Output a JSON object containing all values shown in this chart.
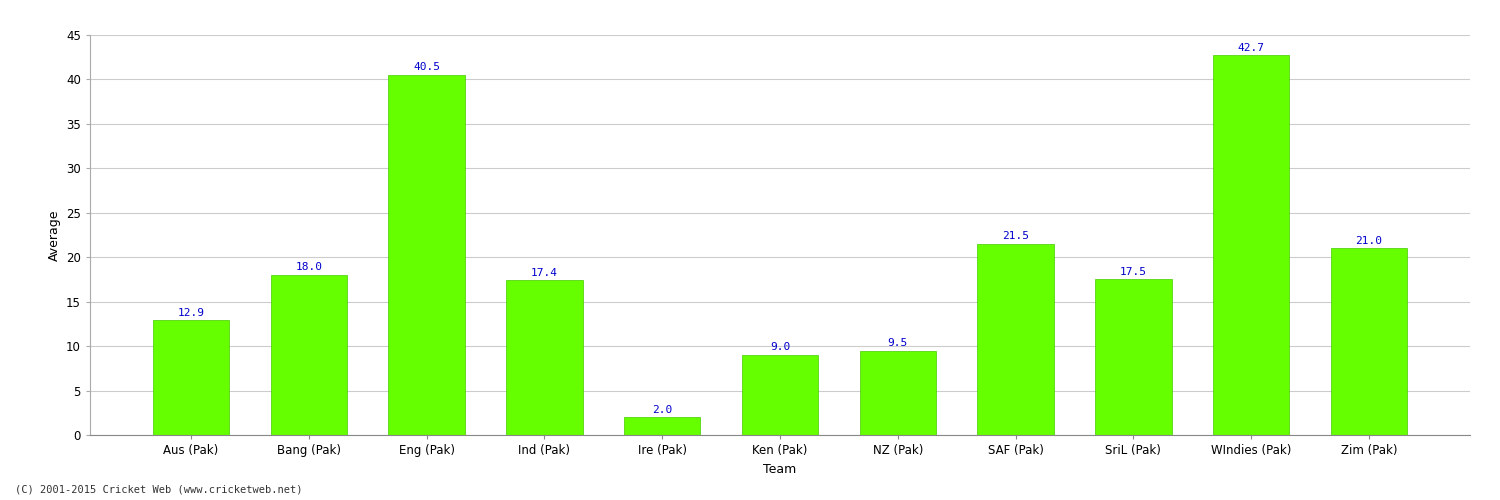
{
  "categories": [
    "Aus (Pak)",
    "Bang (Pak)",
    "Eng (Pak)",
    "Ind (Pak)",
    "Ire (Pak)",
    "Ken (Pak)",
    "NZ (Pak)",
    "SAF (Pak)",
    "SriL (Pak)",
    "WIndies (Pak)",
    "Zim (Pak)"
  ],
  "values": [
    12.9,
    18.0,
    40.5,
    17.4,
    2.0,
    9.0,
    9.5,
    21.5,
    17.5,
    42.7,
    21.0
  ],
  "bar_color": "#66ff00",
  "bar_edge_color": "#44cc00",
  "xlabel": "Team",
  "ylabel": "Average",
  "ylim": [
    0,
    45
  ],
  "yticks": [
    0,
    5,
    10,
    15,
    20,
    25,
    30,
    35,
    40,
    45
  ],
  "label_color": "#0000cc",
  "label_fontsize": 8,
  "axis_fontsize": 8.5,
  "xlabel_fontsize": 9,
  "bg_color": "#ffffff",
  "grid_color": "#cccccc",
  "footnote": "(C) 2001-2015 Cricket Web (www.cricketweb.net)"
}
